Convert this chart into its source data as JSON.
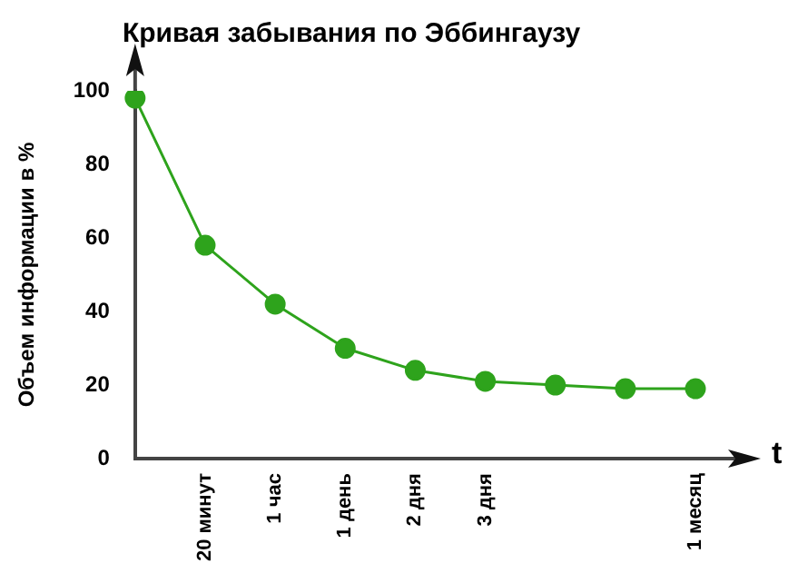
{
  "chart_data": {
    "type": "line",
    "title": "Кривая забывания по Эббингаузу",
    "xlabel": "t",
    "ylabel": "Объем информации в %",
    "categories": [
      null,
      "20 минут",
      "1 час",
      "1 день",
      "2 дня",
      "3 дня",
      null,
      null,
      "1 месяц"
    ],
    "series": [
      {
        "color": "#2ea31c",
        "values": [
          98,
          58,
          42,
          30,
          24,
          21,
          20,
          19,
          19
        ]
      }
    ],
    "ylim": [
      0,
      100
    ],
    "yticks": [
      0,
      20,
      40,
      60,
      80,
      100
    ],
    "grid": false,
    "legend": false,
    "marker": "circle",
    "line_style": "solid"
  }
}
